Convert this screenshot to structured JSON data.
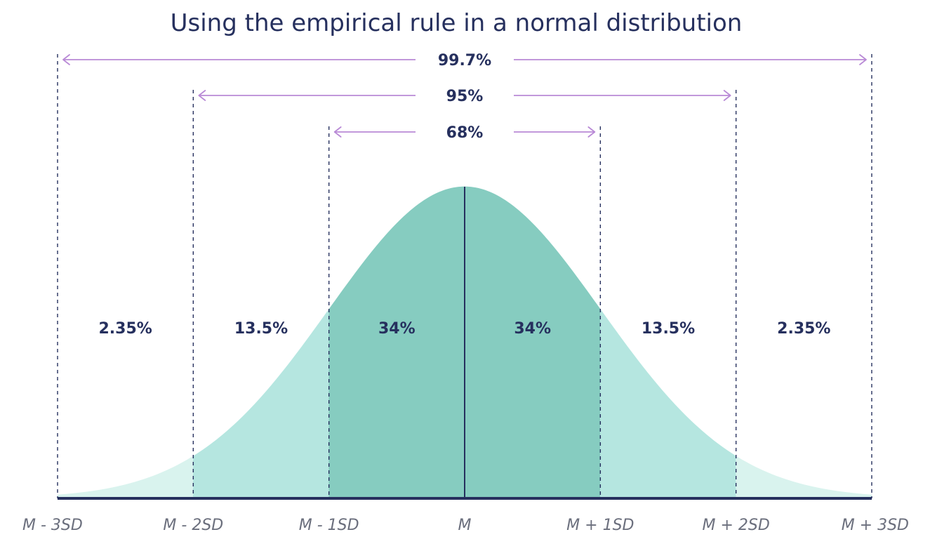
{
  "chart_data": {
    "type": "area",
    "title": "Using the empirical rule in a normal distribution",
    "xlabel": "",
    "ylabel": "",
    "grid": false,
    "legend": "none",
    "x_ticks": [
      "M - 3SD",
      "M - 2SD",
      "M - 1SD",
      "M",
      "M + 1SD",
      "M + 2SD",
      "M + 3SD"
    ],
    "x_range_sd": [
      -3,
      3
    ],
    "regions": [
      {
        "from_sd": -3,
        "to_sd": -2,
        "label": "2.35%",
        "value": 2.35
      },
      {
        "from_sd": -2,
        "to_sd": -1,
        "label": "13.5%",
        "value": 13.5
      },
      {
        "from_sd": -1,
        "to_sd": 0,
        "label": "34%",
        "value": 34
      },
      {
        "from_sd": 0,
        "to_sd": 1,
        "label": "34%",
        "value": 34
      },
      {
        "from_sd": 1,
        "to_sd": 2,
        "label": "13.5%",
        "value": 13.5
      },
      {
        "from_sd": 2,
        "to_sd": 3,
        "label": "2.35%",
        "value": 2.35
      }
    ],
    "brackets": [
      {
        "span_sd": 3,
        "label": "99.7%",
        "value": 99.7
      },
      {
        "span_sd": 2,
        "label": "95%",
        "value": 95
      },
      {
        "span_sd": 1,
        "label": "68%",
        "value": 68
      }
    ],
    "colors": {
      "title": "#26305e",
      "text": "#26305e",
      "tick_text": "#6b6f7d",
      "baseline": "#26305e",
      "dashed_lines": "#26305e",
      "arrows": "#b98ad6",
      "fill_outer": "#d9f3ee",
      "fill_middle": "#b5e6e0",
      "fill_inner": "#86ccc0"
    }
  }
}
